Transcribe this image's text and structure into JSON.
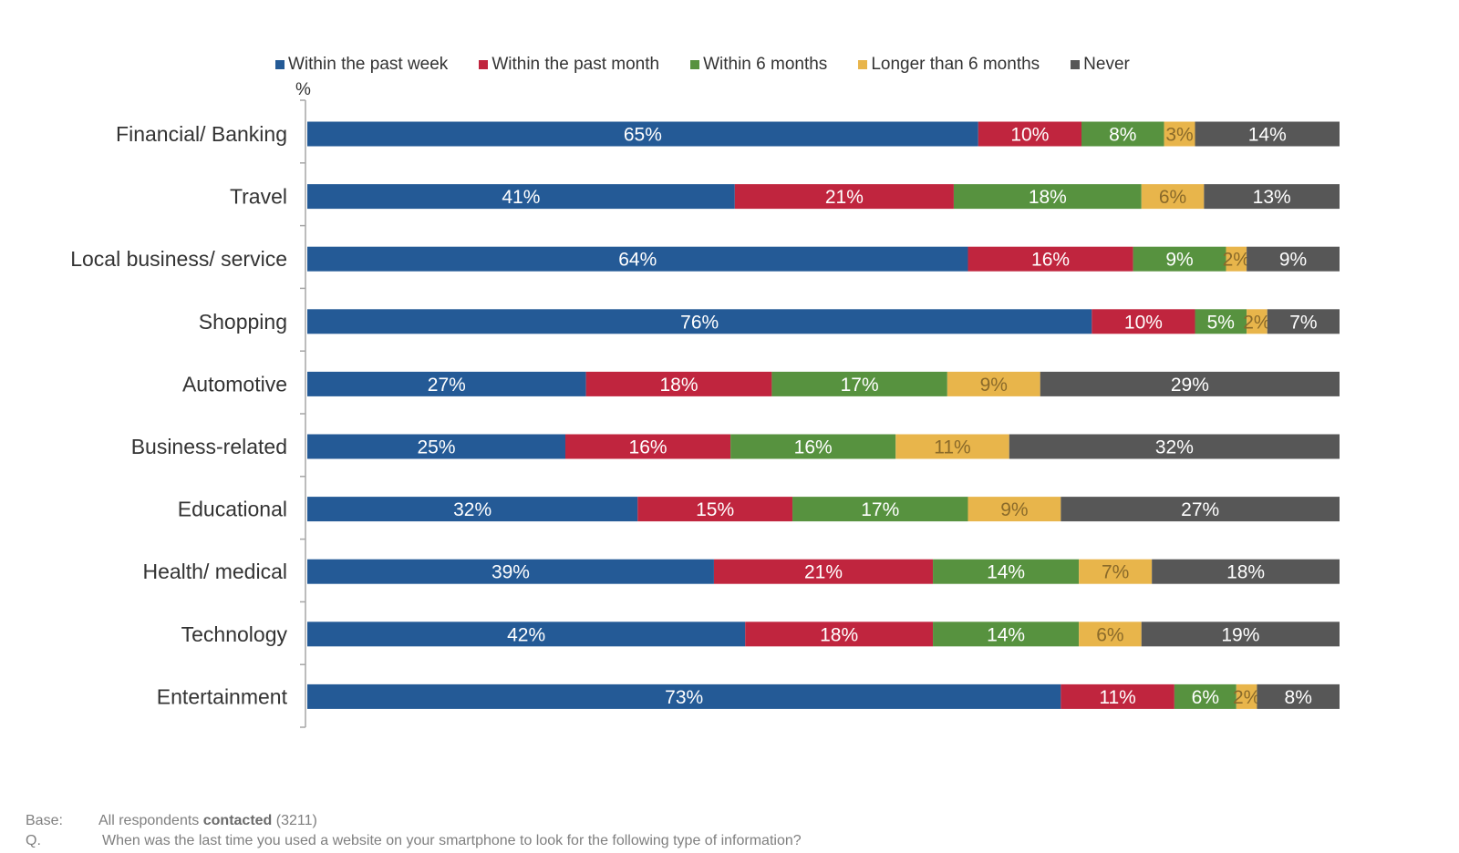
{
  "chart_data": {
    "type": "bar",
    "orientation": "horizontal",
    "stacked": true,
    "unit_label": "%",
    "categories": [
      "Financial/ Banking",
      "Travel",
      "Local business/ service",
      "Shopping",
      "Automotive",
      "Business-related",
      "Educational",
      "Health/ medical",
      "Technology",
      "Entertainment"
    ],
    "series": [
      {
        "name": "Within the past week",
        "color": "#245a96",
        "values": [
          65,
          41,
          64,
          76,
          27,
          25,
          32,
          39,
          42,
          73
        ]
      },
      {
        "name": "Within the past month",
        "color": "#c0253e",
        "values": [
          10,
          21,
          16,
          10,
          18,
          16,
          15,
          21,
          18,
          11
        ]
      },
      {
        "name": "Within 6 months",
        "color": "#57923f",
        "values": [
          8,
          18,
          9,
          5,
          17,
          16,
          17,
          14,
          14,
          6
        ]
      },
      {
        "name": "Longer than 6 months",
        "color": "#e8b54b",
        "values": [
          3,
          6,
          2,
          2,
          9,
          11,
          9,
          7,
          6,
          2
        ]
      },
      {
        "name": "Never",
        "color": "#575757",
        "values": [
          14,
          13,
          9,
          7,
          29,
          32,
          27,
          18,
          19,
          8
        ]
      }
    ],
    "legend_position": "top",
    "grid": false
  },
  "footer": {
    "base_key": "Base:",
    "base_text": "All respondents",
    "base_bold": "contacted",
    "base_count": "(3211)",
    "q_key": "Q.",
    "q_text": "When was the last time you used a website on your smartphone to look for the following type of information?"
  }
}
